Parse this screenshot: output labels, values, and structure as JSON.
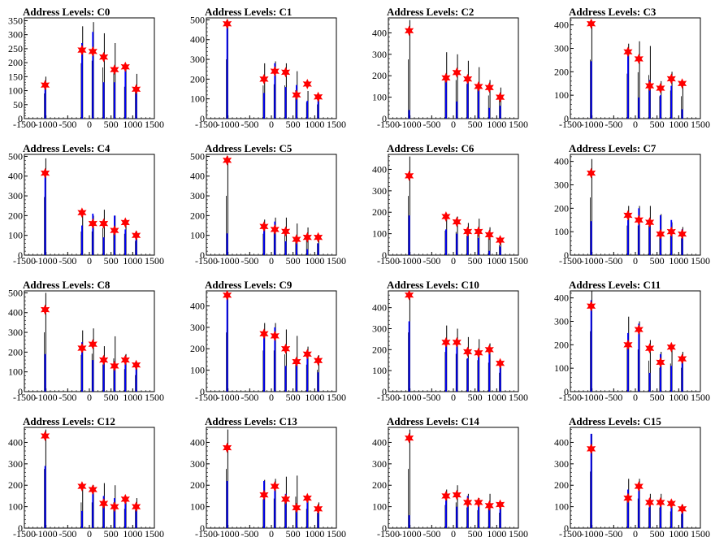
{
  "colors": {
    "hist_black": "#000000",
    "hist_blue": "#0000ff",
    "marker_red": "#ff0000",
    "axis": "#000000"
  },
  "chart_data": [
    {
      "type": "bar",
      "title": "Address Levels: C0",
      "xlim": [
        -1500,
        1500
      ],
      "ylim": [
        0,
        360
      ],
      "yticks": [
        0,
        50,
        100,
        150,
        200,
        250,
        300,
        350
      ],
      "xticks": [
        -1500,
        -1000,
        -500,
        0,
        500,
        1000,
        1500
      ],
      "peaks": [
        {
          "x": -1020,
          "black": 150,
          "blue": 135,
          "marker": 120
        },
        {
          "x": -170,
          "black": 330,
          "blue": 270,
          "marker": 245
        },
        {
          "x": 80,
          "black": 345,
          "blue": 310,
          "marker": 240
        },
        {
          "x": 330,
          "black": 305,
          "blue": 130,
          "marker": 220
        },
        {
          "x": 580,
          "black": 270,
          "blue": 130,
          "marker": 175
        },
        {
          "x": 830,
          "black": 190,
          "blue": 190,
          "marker": 185
        },
        {
          "x": 1080,
          "black": 160,
          "blue": 100,
          "marker": 105
        }
      ]
    },
    {
      "type": "bar",
      "title": "Address Levels: C1",
      "xlim": [
        -1500,
        1500
      ],
      "ylim": [
        0,
        510
      ],
      "yticks": [
        0,
        100,
        200,
        300,
        400,
        500
      ],
      "xticks": [
        -1500,
        -1000,
        -500,
        0,
        500,
        1000,
        1500
      ],
      "peaks": [
        {
          "x": -1020,
          "black": 500,
          "blue": 490,
          "marker": 480
        },
        {
          "x": -170,
          "black": 280,
          "blue": 130,
          "marker": 200
        },
        {
          "x": 80,
          "black": 290,
          "blue": 280,
          "marker": 240
        },
        {
          "x": 330,
          "black": 280,
          "blue": 160,
          "marker": 235
        },
        {
          "x": 580,
          "black": 240,
          "blue": 170,
          "marker": 120
        },
        {
          "x": 830,
          "black": 140,
          "blue": 90,
          "marker": 175
        },
        {
          "x": 1080,
          "black": 120,
          "blue": 100,
          "marker": 110
        }
      ]
    },
    {
      "type": "bar",
      "title": "Address Levels: C2",
      "xlim": [
        -1500,
        1500
      ],
      "ylim": [
        0,
        470
      ],
      "yticks": [
        0,
        100,
        200,
        300,
        400
      ],
      "xticks": [
        -1500,
        -1000,
        -500,
        0,
        500,
        1000,
        1500
      ],
      "peaks": [
        {
          "x": -1020,
          "black": 460,
          "blue": 40,
          "marker": 410
        },
        {
          "x": -170,
          "black": 310,
          "blue": 190,
          "marker": 190
        },
        {
          "x": 80,
          "black": 300,
          "blue": 80,
          "marker": 215
        },
        {
          "x": 330,
          "black": 270,
          "blue": 170,
          "marker": 185
        },
        {
          "x": 580,
          "black": 240,
          "blue": 160,
          "marker": 150
        },
        {
          "x": 830,
          "black": 180,
          "blue": 50,
          "marker": 145
        },
        {
          "x": 1080,
          "black": 145,
          "blue": 60,
          "marker": 100
        }
      ]
    },
    {
      "type": "bar",
      "title": "Address Levels: C3",
      "xlim": [
        -1500,
        1500
      ],
      "ylim": [
        0,
        430
      ],
      "yticks": [
        0,
        100,
        200,
        300,
        400
      ],
      "xticks": [
        -1500,
        -1000,
        -500,
        0,
        500,
        1000,
        1500
      ],
      "peaks": [
        {
          "x": -1020,
          "black": 420,
          "blue": 245,
          "marker": 405
        },
        {
          "x": -170,
          "black": 320,
          "blue": 300,
          "marker": 285
        },
        {
          "x": 80,
          "black": 330,
          "blue": 90,
          "marker": 255
        },
        {
          "x": 330,
          "black": 310,
          "blue": 165,
          "marker": 140
        },
        {
          "x": 580,
          "black": 160,
          "blue": 100,
          "marker": 130
        },
        {
          "x": 830,
          "black": 200,
          "blue": 140,
          "marker": 170
        },
        {
          "x": 1080,
          "black": 160,
          "blue": 40,
          "marker": 150
        }
      ]
    },
    {
      "type": "bar",
      "title": "Address Levels: C4",
      "xlim": [
        -1500,
        1500
      ],
      "ylim": [
        0,
        510
      ],
      "yticks": [
        0,
        100,
        200,
        300,
        400,
        500
      ],
      "xticks": [
        -1500,
        -1000,
        -500,
        0,
        500,
        1000,
        1500
      ],
      "peaks": [
        {
          "x": -1020,
          "black": 490,
          "blue": 420,
          "marker": 415
        },
        {
          "x": -170,
          "black": 200,
          "blue": 150,
          "marker": 215
        },
        {
          "x": 80,
          "black": 200,
          "blue": 210,
          "marker": 160
        },
        {
          "x": 330,
          "black": 230,
          "blue": 90,
          "marker": 160
        },
        {
          "x": 580,
          "black": 200,
          "blue": 200,
          "marker": 125
        },
        {
          "x": 830,
          "black": 180,
          "blue": 130,
          "marker": 165
        },
        {
          "x": 1080,
          "black": 120,
          "blue": 100,
          "marker": 100
        }
      ]
    },
    {
      "type": "bar",
      "title": "Address Levels: C5",
      "xlim": [
        -1500,
        1500
      ],
      "ylim": [
        0,
        510
      ],
      "yticks": [
        0,
        100,
        200,
        300,
        400,
        500
      ],
      "xticks": [
        -1500,
        -1000,
        -500,
        0,
        500,
        1000,
        1500
      ],
      "peaks": [
        {
          "x": -1020,
          "black": 500,
          "blue": 110,
          "marker": 480
        },
        {
          "x": -170,
          "black": 180,
          "blue": 140,
          "marker": 145
        },
        {
          "x": 80,
          "black": 190,
          "blue": 170,
          "marker": 130
        },
        {
          "x": 330,
          "black": 190,
          "blue": 70,
          "marker": 120
        },
        {
          "x": 580,
          "black": 160,
          "blue": 80,
          "marker": 80
        },
        {
          "x": 830,
          "black": 140,
          "blue": 30,
          "marker": 90
        },
        {
          "x": 1080,
          "black": 100,
          "blue": 60,
          "marker": 90
        }
      ]
    },
    {
      "type": "bar",
      "title": "Address Levels: C6",
      "xlim": [
        -1500,
        1500
      ],
      "ylim": [
        0,
        470
      ],
      "yticks": [
        0,
        100,
        200,
        300,
        400
      ],
      "xticks": [
        -1500,
        -1000,
        -500,
        0,
        500,
        1000,
        1500
      ],
      "peaks": [
        {
          "x": -1020,
          "black": 460,
          "blue": 185,
          "marker": 370
        },
        {
          "x": -170,
          "black": 190,
          "blue": 120,
          "marker": 180
        },
        {
          "x": 80,
          "black": 180,
          "blue": 100,
          "marker": 155
        },
        {
          "x": 330,
          "black": 150,
          "blue": 110,
          "marker": 110
        },
        {
          "x": 580,
          "black": 170,
          "blue": 80,
          "marker": 110
        },
        {
          "x": 830,
          "black": 130,
          "blue": 20,
          "marker": 95
        },
        {
          "x": 1080,
          "black": 80,
          "blue": 40,
          "marker": 70
        }
      ]
    },
    {
      "type": "bar",
      "title": "Address Levels: C7",
      "xlim": [
        -1500,
        1500
      ],
      "ylim": [
        0,
        430
      ],
      "yticks": [
        0,
        100,
        200,
        300,
        400
      ],
      "xticks": [
        -1500,
        -1000,
        -500,
        0,
        500,
        1000,
        1500
      ],
      "peaks": [
        {
          "x": -1020,
          "black": 410,
          "blue": 145,
          "marker": 350
        },
        {
          "x": -170,
          "black": 210,
          "blue": 150,
          "marker": 170
        },
        {
          "x": 80,
          "black": 210,
          "blue": 200,
          "marker": 150
        },
        {
          "x": 330,
          "black": 210,
          "blue": 140,
          "marker": 140
        },
        {
          "x": 580,
          "black": 175,
          "blue": 170,
          "marker": 90
        },
        {
          "x": 830,
          "black": 140,
          "blue": 150,
          "marker": 100
        },
        {
          "x": 1080,
          "black": 120,
          "blue": 110,
          "marker": 90
        }
      ]
    },
    {
      "type": "bar",
      "title": "Address Levels: C8",
      "xlim": [
        -1500,
        1500
      ],
      "ylim": [
        0,
        510
      ],
      "yticks": [
        0,
        100,
        200,
        300,
        400,
        500
      ],
      "xticks": [
        -1500,
        -1000,
        -500,
        0,
        500,
        1000,
        1500
      ],
      "peaks": [
        {
          "x": -1020,
          "black": 500,
          "blue": 190,
          "marker": 415
        },
        {
          "x": -170,
          "black": 310,
          "blue": 250,
          "marker": 220
        },
        {
          "x": 80,
          "black": 320,
          "blue": 160,
          "marker": 240
        },
        {
          "x": 330,
          "black": 230,
          "blue": 180,
          "marker": 160
        },
        {
          "x": 580,
          "black": 280,
          "blue": 150,
          "marker": 130
        },
        {
          "x": 830,
          "black": 190,
          "blue": 180,
          "marker": 160
        },
        {
          "x": 1080,
          "black": 140,
          "blue": 120,
          "marker": 135
        }
      ]
    },
    {
      "type": "bar",
      "title": "Address Levels: C9",
      "xlim": [
        -1500,
        1500
      ],
      "ylim": [
        0,
        470
      ],
      "yticks": [
        0,
        100,
        200,
        300,
        400
      ],
      "xticks": [
        -1500,
        -1000,
        -500,
        0,
        500,
        1000,
        1500
      ],
      "peaks": [
        {
          "x": -1020,
          "black": 460,
          "blue": 460,
          "marker": 450
        },
        {
          "x": -170,
          "black": 320,
          "blue": 270,
          "marker": 270
        },
        {
          "x": 80,
          "black": 320,
          "blue": 300,
          "marker": 260
        },
        {
          "x": 330,
          "black": 290,
          "blue": 120,
          "marker": 200
        },
        {
          "x": 580,
          "black": 260,
          "blue": 150,
          "marker": 140
        },
        {
          "x": 830,
          "black": 210,
          "blue": 180,
          "marker": 175
        },
        {
          "x": 1080,
          "black": 170,
          "blue": 90,
          "marker": 145
        }
      ]
    },
    {
      "type": "bar",
      "title": "Address Levels: C10",
      "xlim": [
        -1500,
        1500
      ],
      "ylim": [
        0,
        480
      ],
      "yticks": [
        0,
        100,
        200,
        300,
        400
      ],
      "xticks": [
        -1500,
        -1000,
        -500,
        0,
        500,
        1000,
        1500
      ],
      "peaks": [
        {
          "x": -1020,
          "black": 470,
          "blue": 335,
          "marker": 460
        },
        {
          "x": -170,
          "black": 315,
          "blue": 240,
          "marker": 235
        },
        {
          "x": 80,
          "black": 300,
          "blue": 240,
          "marker": 235
        },
        {
          "x": 330,
          "black": 260,
          "blue": 160,
          "marker": 190
        },
        {
          "x": 580,
          "black": 250,
          "blue": 170,
          "marker": 185
        },
        {
          "x": 830,
          "black": 230,
          "blue": 210,
          "marker": 200
        },
        {
          "x": 1080,
          "black": 150,
          "blue": 130,
          "marker": 135
        }
      ]
    },
    {
      "type": "bar",
      "title": "Address Levels: C11",
      "xlim": [
        -1500,
        1500
      ],
      "ylim": [
        0,
        430
      ],
      "yticks": [
        0,
        100,
        200,
        300,
        400
      ],
      "xticks": [
        -1500,
        -1000,
        -500,
        0,
        500,
        1000,
        1500
      ],
      "peaks": [
        {
          "x": -1020,
          "black": 430,
          "blue": 390,
          "marker": 365
        },
        {
          "x": -170,
          "black": 320,
          "blue": 250,
          "marker": 200
        },
        {
          "x": 80,
          "black": 300,
          "blue": 290,
          "marker": 265
        },
        {
          "x": 330,
          "black": 220,
          "blue": 80,
          "marker": 185
        },
        {
          "x": 580,
          "black": 170,
          "blue": 160,
          "marker": 125
        },
        {
          "x": 830,
          "black": 200,
          "blue": 110,
          "marker": 190
        },
        {
          "x": 1080,
          "black": 170,
          "blue": 140,
          "marker": 140
        }
      ]
    },
    {
      "type": "bar",
      "title": "Address Levels: C12",
      "xlim": [
        -1500,
        1500
      ],
      "ylim": [
        0,
        470
      ],
      "yticks": [
        0,
        100,
        200,
        300,
        400
      ],
      "xticks": [
        -1500,
        -1000,
        -500,
        0,
        500,
        1000,
        1500
      ],
      "peaks": [
        {
          "x": -1020,
          "black": 460,
          "blue": 290,
          "marker": 430
        },
        {
          "x": -170,
          "black": 200,
          "blue": 80,
          "marker": 195
        },
        {
          "x": 80,
          "black": 200,
          "blue": 180,
          "marker": 180
        },
        {
          "x": 330,
          "black": 210,
          "blue": 150,
          "marker": 115
        },
        {
          "x": 580,
          "black": 200,
          "blue": 140,
          "marker": 100
        },
        {
          "x": 830,
          "black": 150,
          "blue": 130,
          "marker": 135
        },
        {
          "x": 1080,
          "black": 140,
          "blue": 110,
          "marker": 100
        }
      ]
    },
    {
      "type": "bar",
      "title": "Address Levels: C13",
      "xlim": [
        -1500,
        1500
      ],
      "ylim": [
        0,
        470
      ],
      "yticks": [
        0,
        100,
        200,
        300,
        400
      ],
      "xticks": [
        -1500,
        -1000,
        -500,
        0,
        500,
        1000,
        1500
      ],
      "peaks": [
        {
          "x": -1020,
          "black": 460,
          "blue": 220,
          "marker": 375
        },
        {
          "x": -170,
          "black": 225,
          "blue": 220,
          "marker": 155
        },
        {
          "x": 80,
          "black": 230,
          "blue": 210,
          "marker": 195
        },
        {
          "x": 330,
          "black": 240,
          "blue": 160,
          "marker": 135
        },
        {
          "x": 580,
          "black": 245,
          "blue": 90,
          "marker": 95
        },
        {
          "x": 830,
          "black": 150,
          "blue": 130,
          "marker": 140
        },
        {
          "x": 1080,
          "black": 120,
          "blue": 100,
          "marker": 90
        }
      ]
    },
    {
      "type": "bar",
      "title": "Address Levels: C14",
      "xlim": [
        -1500,
        1500
      ],
      "ylim": [
        0,
        470
      ],
      "yticks": [
        0,
        100,
        200,
        300,
        400
      ],
      "xticks": [
        -1500,
        -1000,
        -500,
        0,
        500,
        1000,
        1500
      ],
      "peaks": [
        {
          "x": -1020,
          "black": 460,
          "blue": 60,
          "marker": 420
        },
        {
          "x": -170,
          "black": 180,
          "blue": 130,
          "marker": 150
        },
        {
          "x": 80,
          "black": 200,
          "blue": 100,
          "marker": 155
        },
        {
          "x": 330,
          "black": 160,
          "blue": 150,
          "marker": 120
        },
        {
          "x": 580,
          "black": 140,
          "blue": 120,
          "marker": 120
        },
        {
          "x": 830,
          "black": 160,
          "blue": 90,
          "marker": 105
        },
        {
          "x": 1080,
          "black": 120,
          "blue": 90,
          "marker": 110
        }
      ]
    },
    {
      "type": "bar",
      "title": "Address Levels: C15",
      "xlim": [
        -1500,
        1500
      ],
      "ylim": [
        0,
        470
      ],
      "yticks": [
        0,
        100,
        200,
        300,
        400
      ],
      "xticks": [
        -1500,
        -1000,
        -500,
        0,
        500,
        1000,
        1500
      ],
      "peaks": [
        {
          "x": -1020,
          "black": 440,
          "blue": 440,
          "marker": 370
        },
        {
          "x": -170,
          "black": 230,
          "blue": 180,
          "marker": 140
        },
        {
          "x": 80,
          "black": 230,
          "blue": 210,
          "marker": 195
        },
        {
          "x": 330,
          "black": 160,
          "blue": 140,
          "marker": 120
        },
        {
          "x": 580,
          "black": 160,
          "blue": 130,
          "marker": 120
        },
        {
          "x": 830,
          "black": 130,
          "blue": 100,
          "marker": 115
        },
        {
          "x": 1080,
          "black": 110,
          "blue": 90,
          "marker": 90
        }
      ]
    }
  ]
}
